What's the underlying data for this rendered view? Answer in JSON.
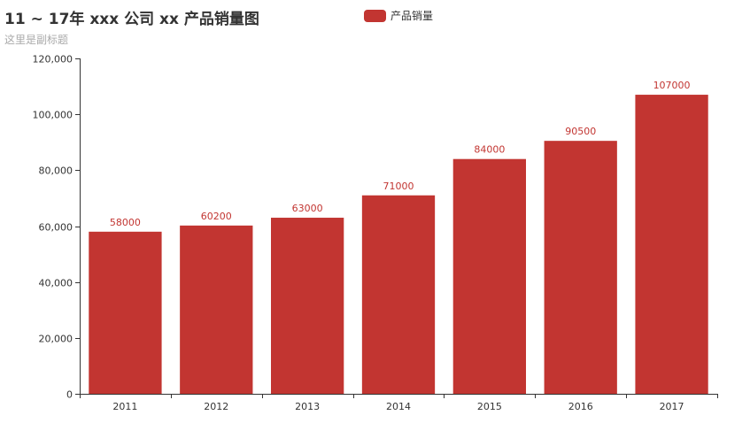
{
  "chart_data": {
    "type": "bar",
    "title": "11 ~ 17年 xxx 公司 xx 产品销量图",
    "subtitle": "这里是副标题",
    "categories": [
      "2011",
      "2012",
      "2013",
      "2014",
      "2015",
      "2016",
      "2017"
    ],
    "series": [
      {
        "name": "产品销量",
        "values": [
          58000,
          60200,
          63000,
          71000,
          84000,
          90500,
          107000
        ],
        "color": "#c23531"
      }
    ],
    "ylim": [
      0,
      120000
    ],
    "yticks": [
      0,
      20000,
      40000,
      60000,
      80000,
      100000,
      120000
    ],
    "ytick_labels": [
      "0",
      "20,000",
      "40,000",
      "60,000",
      "80,000",
      "100,000",
      "120,000"
    ],
    "grid": false,
    "legend_position": "top-center",
    "data_labels": true
  }
}
